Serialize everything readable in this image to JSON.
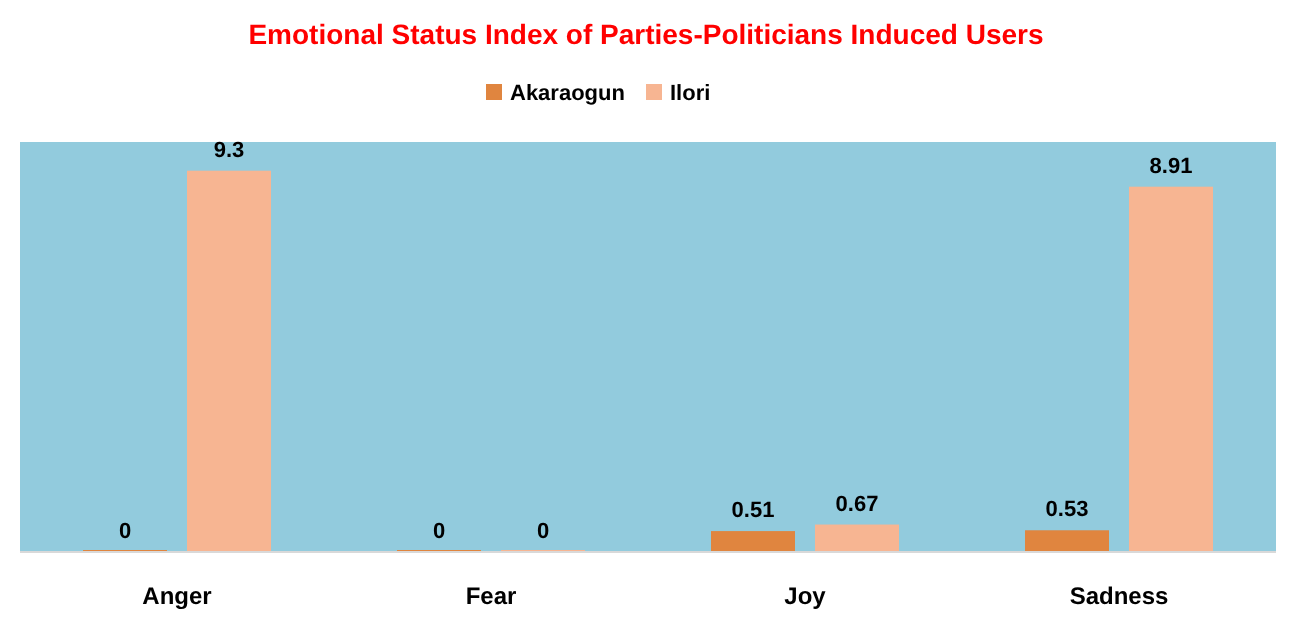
{
  "chart_data": {
    "type": "bar",
    "title": "Emotional Status Index of Parties-Politicians Induced Users",
    "categories": [
      "Anger",
      "Fear",
      "Joy",
      "Sadness"
    ],
    "series": [
      {
        "name": "Akaraogun",
        "color": "#e0853f",
        "values": [
          0,
          0,
          0.51,
          0.53
        ]
      },
      {
        "name": "Ilori",
        "color": "#f7b592",
        "values": [
          9.3,
          0,
          0.67,
          8.91
        ]
      }
    ],
    "ylim": [
      0,
      10
    ],
    "data_labels": true,
    "legend": "top",
    "tick_labels": "x"
  }
}
